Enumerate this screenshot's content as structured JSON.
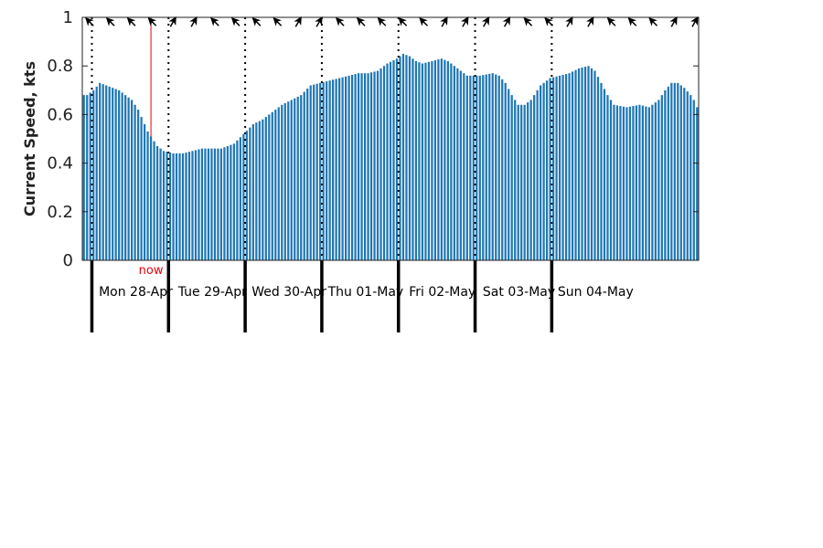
{
  "chart_data": {
    "type": "bar",
    "ylabel": "Current Speed, kts",
    "ylim": [
      0,
      1
    ],
    "yticks": [
      "0",
      "0.2",
      "0.4",
      "0.6",
      "0.8",
      "1"
    ],
    "bar_color": "#1f77b4",
    "now_label": "now",
    "now_color": "#e8000b",
    "days": [
      "Mon 28-Apr",
      "Tue 29-Apr",
      "Wed 30-Apr",
      "Thu 01-May",
      "Fri 02-May",
      "Sat 03-May",
      "Sun 04-May"
    ],
    "hours_per_day": 24,
    "start_hour_offset": 3,
    "now_hour": 21,
    "keypoints": [
      [
        0,
        0.68
      ],
      [
        1,
        0.68
      ],
      [
        3,
        0.7
      ],
      [
        5,
        0.73
      ],
      [
        7,
        0.72
      ],
      [
        9,
        0.71
      ],
      [
        11,
        0.7
      ],
      [
        13,
        0.68
      ],
      [
        15,
        0.66
      ],
      [
        17,
        0.62
      ],
      [
        20,
        0.53
      ],
      [
        23,
        0.47
      ],
      [
        25,
        0.45
      ],
      [
        28,
        0.44
      ],
      [
        31,
        0.44
      ],
      [
        34,
        0.45
      ],
      [
        37,
        0.46
      ],
      [
        43,
        0.46
      ],
      [
        47,
        0.48
      ],
      [
        50,
        0.52
      ],
      [
        53,
        0.56
      ],
      [
        56,
        0.58
      ],
      [
        59,
        0.61
      ],
      [
        62,
        0.64
      ],
      [
        65,
        0.66
      ],
      [
        68,
        0.68
      ],
      [
        71,
        0.72
      ],
      [
        74,
        0.73
      ],
      [
        77,
        0.74
      ],
      [
        80,
        0.75
      ],
      [
        86,
        0.77
      ],
      [
        89,
        0.77
      ],
      [
        92,
        0.78
      ],
      [
        95,
        0.81
      ],
      [
        98,
        0.83
      ],
      [
        100,
        0.85
      ],
      [
        102,
        0.84
      ],
      [
        104,
        0.82
      ],
      [
        106,
        0.81
      ],
      [
        109,
        0.82
      ],
      [
        112,
        0.83
      ],
      [
        114,
        0.82
      ],
      [
        116,
        0.8
      ],
      [
        118,
        0.78
      ],
      [
        120,
        0.76
      ],
      [
        124,
        0.76
      ],
      [
        128,
        0.77
      ],
      [
        130,
        0.76
      ],
      [
        132,
        0.73
      ],
      [
        134,
        0.68
      ],
      [
        136,
        0.64
      ],
      [
        138,
        0.64
      ],
      [
        140,
        0.66
      ],
      [
        143,
        0.72
      ],
      [
        146,
        0.75
      ],
      [
        149,
        0.76
      ],
      [
        152,
        0.77
      ],
      [
        155,
        0.79
      ],
      [
        158,
        0.8
      ],
      [
        160,
        0.78
      ],
      [
        162,
        0.73
      ],
      [
        164,
        0.68
      ],
      [
        166,
        0.64
      ],
      [
        170,
        0.63
      ],
      [
        174,
        0.64
      ],
      [
        177,
        0.63
      ],
      [
        178,
        0.64
      ],
      [
        180,
        0.66
      ],
      [
        182,
        0.7
      ],
      [
        184,
        0.73
      ],
      [
        186,
        0.73
      ],
      [
        188,
        0.71
      ],
      [
        190,
        0.68
      ],
      [
        191,
        0.66
      ],
      [
        192,
        0.63
      ]
    ],
    "direction_arrows": {
      "count": 30,
      "pattern_deg": [
        -45,
        -45,
        -45,
        -45,
        30,
        30,
        -45,
        -45,
        -45,
        -45,
        30,
        30,
        -45,
        -45,
        -45,
        -45,
        -45,
        30,
        30,
        30,
        30,
        -45,
        -45,
        30,
        30,
        -45,
        -45,
        -45,
        30,
        30
      ]
    }
  }
}
